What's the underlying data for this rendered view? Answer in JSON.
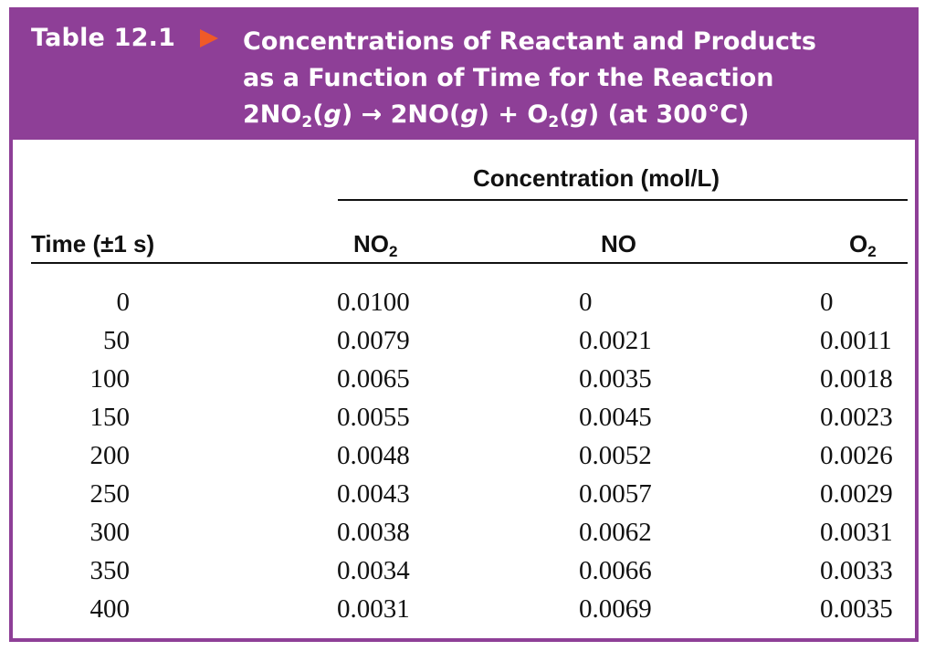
{
  "table": {
    "label": "Table 12.1",
    "title_line1": "Concentrations of Reactant and Products",
    "title_line2": "as a Function of Time for the Reaction",
    "eq_a": "2NO",
    "eq_a_sub": "2",
    "eq_b": "(",
    "eq_g1": "g",
    "eq_c": ") → 2NO(",
    "eq_g2": "g",
    "eq_d": ") + O",
    "eq_d_sub": "2",
    "eq_e": "(",
    "eq_g3": "g",
    "eq_f": ") (at 300°C)",
    "accent_color": "#8e3f97",
    "arrow_color": "#f05a28"
  },
  "headers": {
    "group": "Concentration (mol/L)",
    "time": "Time (±1 s)",
    "no2": "NO",
    "no2_sub": "2",
    "no": "NO",
    "o2": "O",
    "o2_sub": "2"
  },
  "rows": [
    {
      "time": "0",
      "no2": "0.0100",
      "no": "0",
      "o2": "0"
    },
    {
      "time": "50",
      "no2": "0.0079",
      "no": "0.0021",
      "o2": "0.0011"
    },
    {
      "time": "100",
      "no2": "0.0065",
      "no": "0.0035",
      "o2": "0.0018"
    },
    {
      "time": "150",
      "no2": "0.0055",
      "no": "0.0045",
      "o2": "0.0023"
    },
    {
      "time": "200",
      "no2": "0.0048",
      "no": "0.0052",
      "o2": "0.0026"
    },
    {
      "time": "250",
      "no2": "0.0043",
      "no": "0.0057",
      "o2": "0.0029"
    },
    {
      "time": "300",
      "no2": "0.0038",
      "no": "0.0062",
      "o2": "0.0031"
    },
    {
      "time": "350",
      "no2": "0.0034",
      "no": "0.0066",
      "o2": "0.0033"
    },
    {
      "time": "400",
      "no2": "0.0031",
      "no": "0.0069",
      "o2": "0.0035"
    }
  ]
}
